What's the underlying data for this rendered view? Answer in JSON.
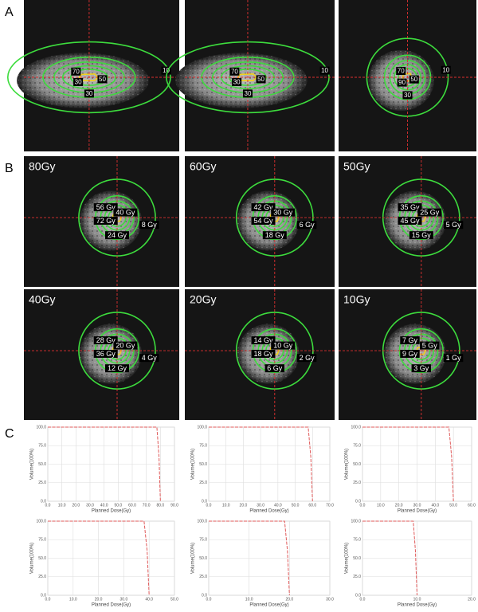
{
  "figure": {
    "panel_labels": [
      "A",
      "B",
      "C"
    ],
    "row_a": [
      {
        "labels": [
          "70",
          "50",
          "30",
          "30",
          "10"
        ]
      },
      {
        "labels": [
          "70",
          "50",
          "30",
          "30",
          "10"
        ]
      },
      {
        "labels": [
          "70",
          "50",
          "90",
          "30",
          "10"
        ]
      }
    ],
    "row_b": [
      {
        "title": "80Gy",
        "labels": [
          "56 Gy",
          "40 Gy",
          "72 Gy",
          "24 Gy",
          "8 Gy"
        ]
      },
      {
        "title": "60Gy",
        "labels": [
          "42 Gy",
          "30 Gy",
          "54 Gy",
          "18 Gy",
          "6 Gy"
        ]
      },
      {
        "title": "50Gy",
        "labels": [
          "35 Gy",
          "25 Gy",
          "45 Gy",
          "15 Gy",
          "5 Gy"
        ]
      },
      {
        "title": "40Gy",
        "labels": [
          "28 Gy",
          "20 Gy",
          "36 Gy",
          "12 Gy",
          "4 Gy"
        ]
      },
      {
        "title": "20Gy",
        "labels": [
          "14 Gy",
          "10 Gy",
          "18 Gy",
          "6 Gy",
          "2 Gy"
        ]
      },
      {
        "title": "10Gy",
        "labels": [
          "7 Gy",
          "5 Gy",
          "9 Gy",
          "3 Gy",
          "1 Gy"
        ]
      }
    ]
  },
  "chart_data": [
    {
      "type": "line",
      "xlabel": "Planned Dose(Gy)",
      "ylabel": "Volume(100%)",
      "color": "#e05a5a",
      "grid": true,
      "x": [
        0,
        77.5,
        79,
        80
      ],
      "values": [
        100,
        100,
        60,
        0
      ],
      "xlim": [
        0,
        90
      ],
      "xticks": [
        {
          "value": 0,
          "label": "0.0"
        },
        {
          "value": 10,
          "label": "10.0"
        },
        {
          "value": 20,
          "label": "20.0"
        },
        {
          "value": 30,
          "label": "30.0"
        },
        {
          "value": 40,
          "label": "40.0"
        },
        {
          "value": 50,
          "label": "50.0"
        },
        {
          "value": 60,
          "label": "60.0"
        },
        {
          "value": 70,
          "label": "70.0"
        },
        {
          "value": 80,
          "label": "80.0"
        },
        {
          "value": 90,
          "label": "90.0"
        }
      ],
      "ylim": [
        0,
        100
      ],
      "yticks": [
        {
          "value": 0,
          "label": "0.0"
        },
        {
          "value": 25,
          "label": "25.0"
        },
        {
          "value": 50,
          "label": "50.0"
        },
        {
          "value": 75,
          "label": "75.0"
        },
        {
          "value": 100,
          "label": "100.0"
        }
      ]
    },
    {
      "type": "line",
      "xlabel": "Planned Dose(Gy)",
      "ylabel": "Volume(100%)",
      "color": "#e05a5a",
      "grid": true,
      "x": [
        0,
        57.5,
        59,
        60
      ],
      "values": [
        100,
        100,
        60,
        0
      ],
      "xlim": [
        0,
        70
      ],
      "xticks": [
        {
          "value": 0,
          "label": "0.0"
        },
        {
          "value": 10,
          "label": "10.0"
        },
        {
          "value": 20,
          "label": "20.0"
        },
        {
          "value": 30,
          "label": "30.0"
        },
        {
          "value": 40,
          "label": "40.0"
        },
        {
          "value": 50,
          "label": "50.0"
        },
        {
          "value": 60,
          "label": "60.0"
        },
        {
          "value": 70,
          "label": "70.0"
        }
      ],
      "ylim": [
        0,
        100
      ],
      "yticks": [
        {
          "value": 0,
          "label": "0.0"
        },
        {
          "value": 25,
          "label": "25.0"
        },
        {
          "value": 50,
          "label": "50.0"
        },
        {
          "value": 75,
          "label": "75.0"
        },
        {
          "value": 100,
          "label": "100.0"
        }
      ]
    },
    {
      "type": "line",
      "xlabel": "Planned Dose(Gy)",
      "ylabel": "Volume(100%)",
      "color": "#e05a5a",
      "grid": true,
      "x": [
        0,
        47.5,
        49,
        50
      ],
      "values": [
        100,
        100,
        60,
        0
      ],
      "xlim": [
        0,
        60
      ],
      "xticks": [
        {
          "value": 0,
          "label": "0.0"
        },
        {
          "value": 10,
          "label": "10.0"
        },
        {
          "value": 20,
          "label": "20.0"
        },
        {
          "value": 30,
          "label": "30.0"
        },
        {
          "value": 40,
          "label": "40.0"
        },
        {
          "value": 50,
          "label": "50.0"
        },
        {
          "value": 60,
          "label": "60.0"
        }
      ],
      "ylim": [
        0,
        100
      ],
      "yticks": [
        {
          "value": 0,
          "label": "0.0"
        },
        {
          "value": 25,
          "label": "25.0"
        },
        {
          "value": 50,
          "label": "50.0"
        },
        {
          "value": 75,
          "label": "75.0"
        },
        {
          "value": 100,
          "label": "100.0"
        }
      ]
    },
    {
      "type": "line",
      "xlabel": "Planned Dose(Gy)",
      "ylabel": "Volume(100%)",
      "color": "#e05a5a",
      "grid": true,
      "x": [
        0,
        38,
        39.2,
        40
      ],
      "values": [
        100,
        100,
        60,
        0
      ],
      "xlim": [
        0,
        50
      ],
      "xticks": [
        {
          "value": 0,
          "label": "0.0"
        },
        {
          "value": 10,
          "label": "10.0"
        },
        {
          "value": 20,
          "label": "20.0"
        },
        {
          "value": 30,
          "label": "30.0"
        },
        {
          "value": 40,
          "label": "40.0"
        },
        {
          "value": 50,
          "label": "50.0"
        }
      ],
      "ylim": [
        0,
        100
      ],
      "yticks": [
        {
          "value": 0,
          "label": "0.0"
        },
        {
          "value": 25,
          "label": "25.0"
        },
        {
          "value": 50,
          "label": "50.0"
        },
        {
          "value": 75,
          "label": "75.0"
        },
        {
          "value": 100,
          "label": "100.0"
        }
      ]
    },
    {
      "type": "line",
      "xlabel": "Planned Dose(Gy)",
      "ylabel": "Volume(100%)",
      "color": "#e05a5a",
      "grid": true,
      "x": [
        0,
        18.8,
        19.5,
        20
      ],
      "values": [
        100,
        100,
        60,
        0
      ],
      "xlim": [
        0,
        30
      ],
      "xticks": [
        {
          "value": 0,
          "label": "0.0"
        },
        {
          "value": 10,
          "label": "10.0"
        },
        {
          "value": 20,
          "label": "20.0"
        },
        {
          "value": 30,
          "label": "30.0"
        }
      ],
      "ylim": [
        0,
        100
      ],
      "yticks": [
        {
          "value": 0,
          "label": "0.0"
        },
        {
          "value": 25,
          "label": "25.0"
        },
        {
          "value": 50,
          "label": "50.0"
        },
        {
          "value": 75,
          "label": "75.0"
        },
        {
          "value": 100,
          "label": "100.0"
        }
      ]
    },
    {
      "type": "line",
      "xlabel": "Planned Dose(Gy)",
      "ylabel": "Volume(100%)",
      "color": "#e05a5a",
      "grid": true,
      "x": [
        0,
        9.3,
        9.7,
        10
      ],
      "values": [
        100,
        100,
        60,
        0
      ],
      "xlim": [
        0,
        20
      ],
      "xticks": [
        {
          "value": 0,
          "label": "0.0"
        },
        {
          "value": 10,
          "label": "10.0"
        },
        {
          "value": 20,
          "label": "20.0"
        }
      ],
      "ylim": [
        0,
        100
      ],
      "yticks": [
        {
          "value": 0,
          "label": "0.0"
        },
        {
          "value": 25,
          "label": "25.0"
        },
        {
          "value": 50,
          "label": "50.0"
        },
        {
          "value": 75,
          "label": "75.0"
        },
        {
          "value": 100,
          "label": "100.0"
        }
      ]
    }
  ]
}
